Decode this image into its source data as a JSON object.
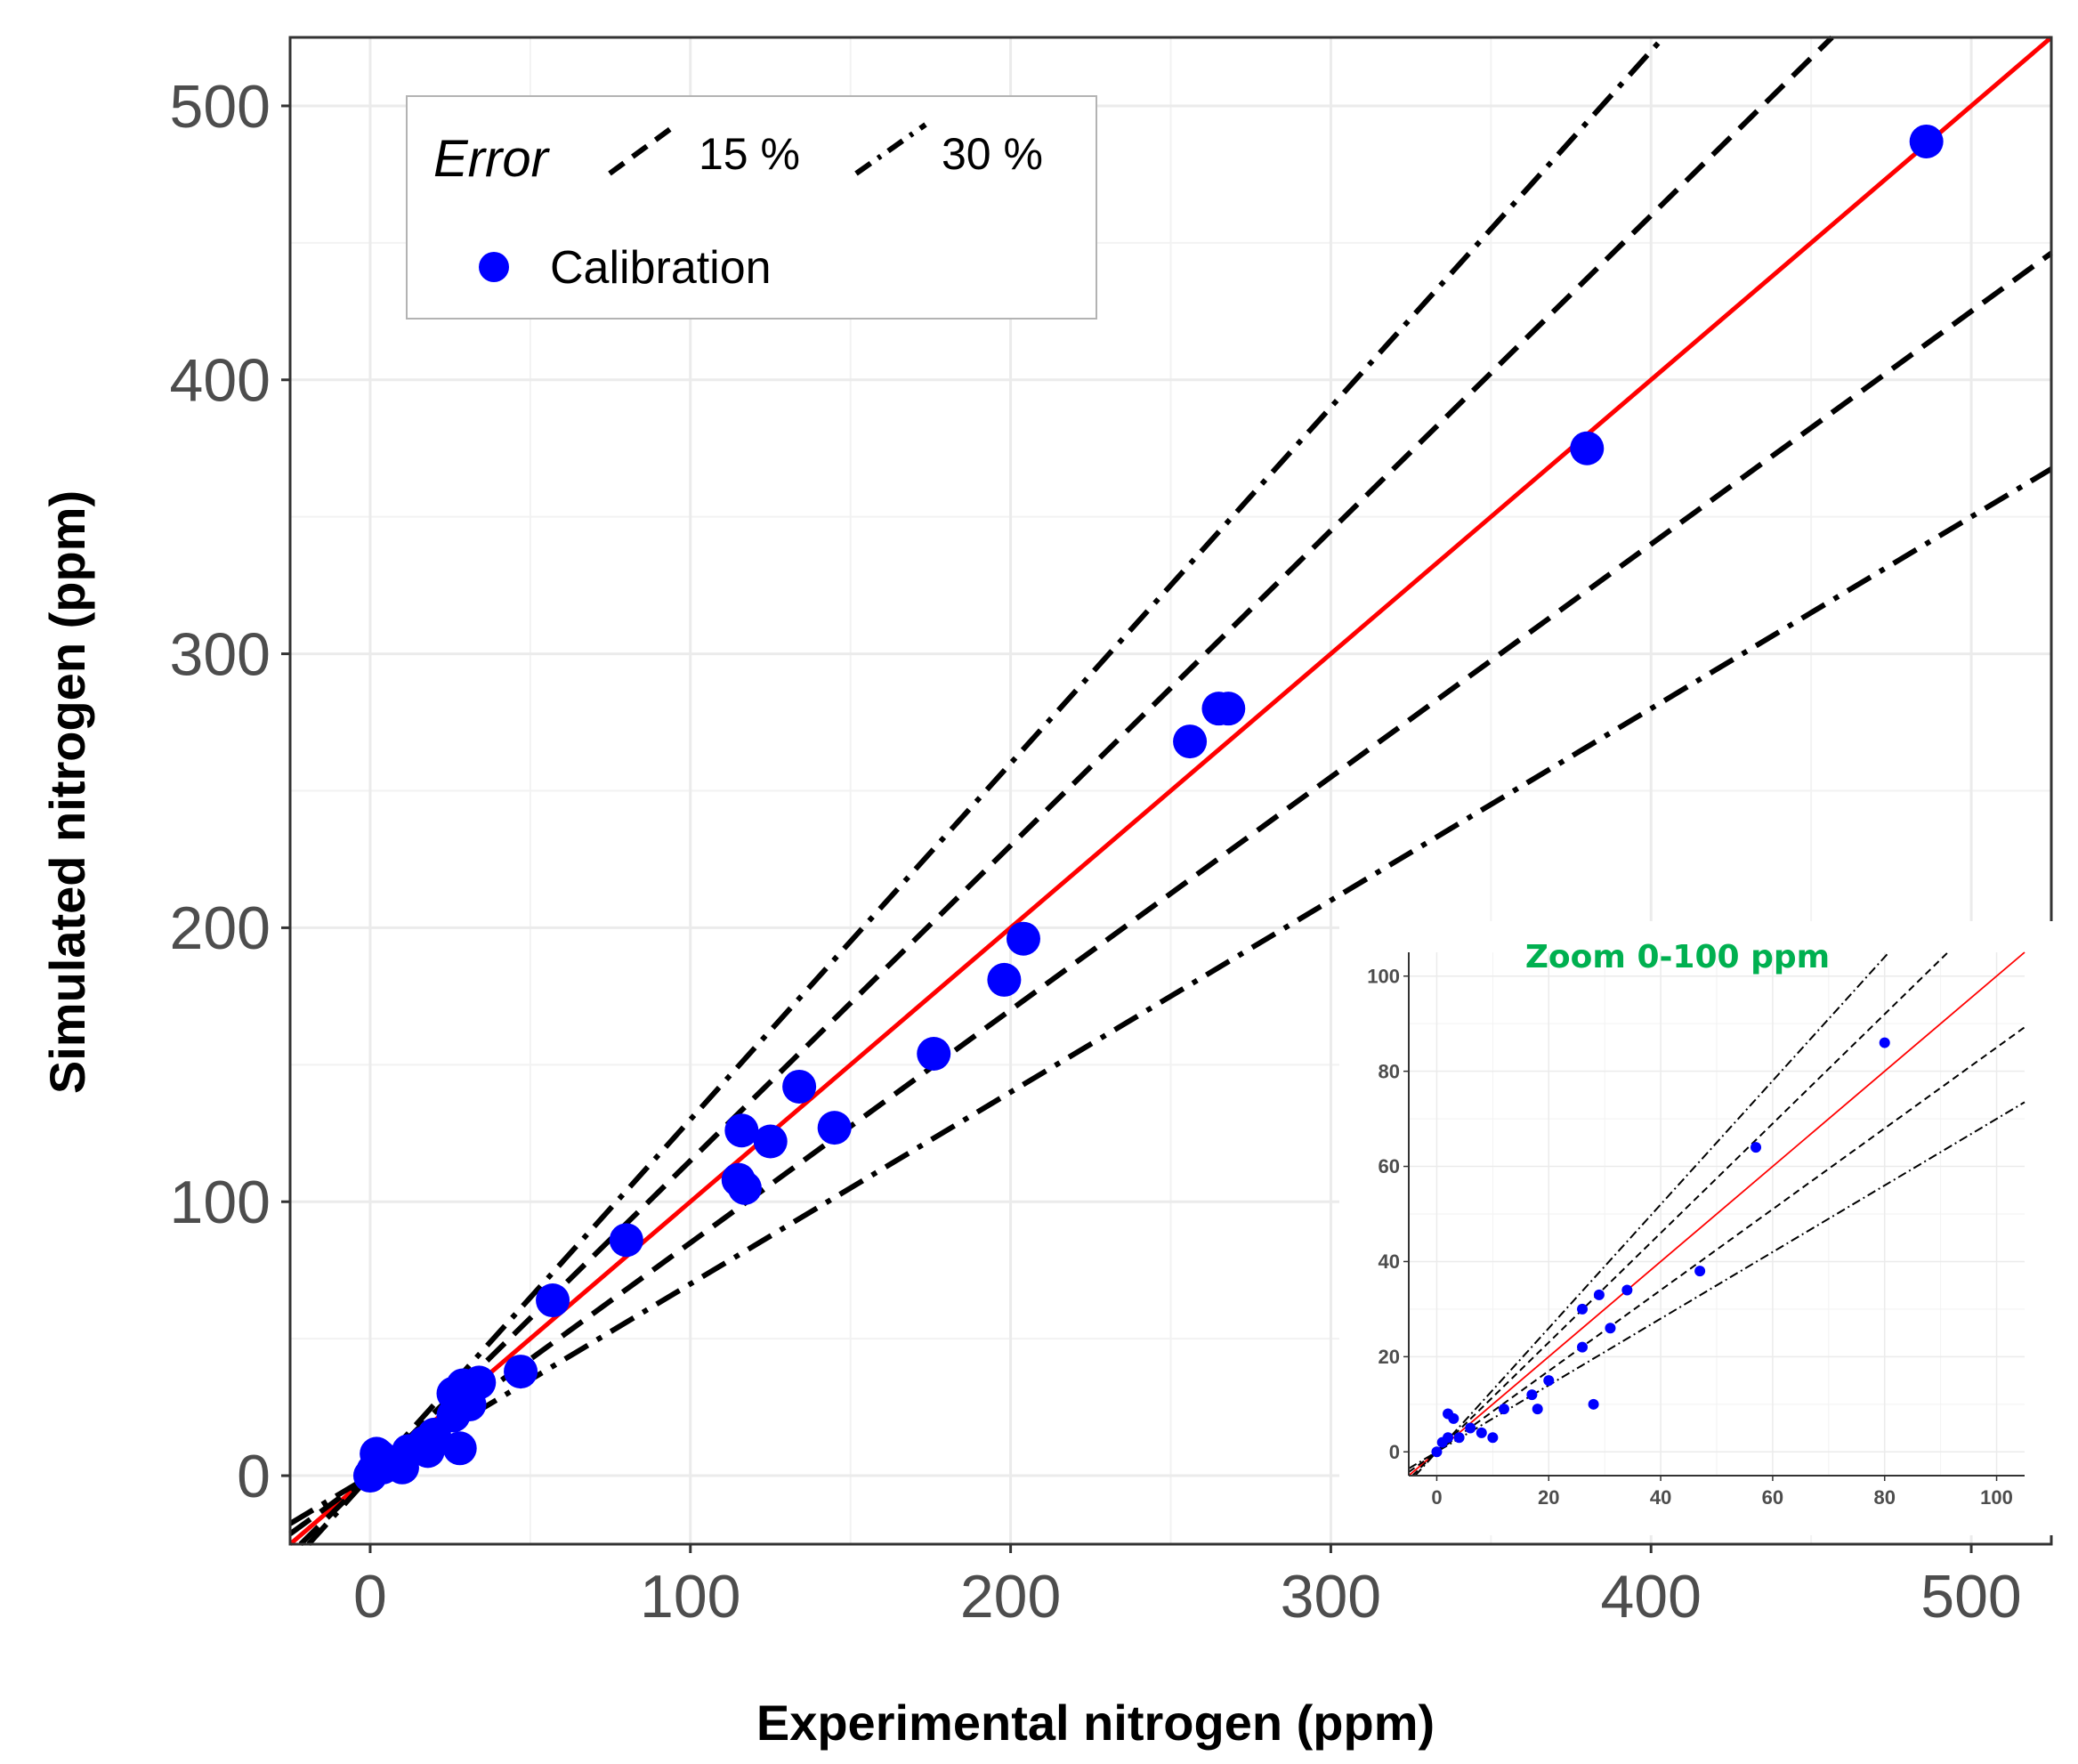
{
  "chart_data": [
    {
      "type": "scatter",
      "title": "",
      "xlabel": "Experimental nitrogen (ppm)",
      "ylabel": "Simulated nitrogen (ppm)",
      "xlim": [
        -25,
        525
      ],
      "ylim": [
        -25,
        525
      ],
      "xticks": [
        0,
        100,
        200,
        300,
        400,
        500
      ],
      "yticks": [
        0,
        100,
        200,
        300,
        400,
        500
      ],
      "grid": true,
      "legend": {
        "placement": "top-left",
        "title": "Error",
        "line_entries": [
          "15 %",
          "30 %"
        ],
        "point_entry": "Calibration"
      },
      "colors": {
        "points": "#0000ff",
        "identity_line": "#ff0000",
        "error_lines": "#000000",
        "grid": "#ebebeb"
      },
      "reference_lines": [
        {
          "name": "identity",
          "slope": 1.0,
          "style": "solid",
          "color": "#ff0000"
        },
        {
          "name": "+15 %",
          "slope": 1.15,
          "style": "dashed"
        },
        {
          "name": "-15 %",
          "slope": 0.85,
          "style": "dashed"
        },
        {
          "name": "+30 %",
          "slope": 1.3,
          "style": "dotdash"
        },
        {
          "name": "-30 %",
          "slope": 0.7,
          "style": "dotdash"
        }
      ],
      "series": [
        {
          "name": "Calibration",
          "points": [
            [
              0,
              0
            ],
            [
              1,
              2
            ],
            [
              2,
              3
            ],
            [
              2,
              8
            ],
            [
              3,
              7
            ],
            [
              4,
              3
            ],
            [
              6,
              5
            ],
            [
              8,
              4
            ],
            [
              10,
              3
            ],
            [
              12,
              9
            ],
            [
              17,
              12
            ],
            [
              18,
              9
            ],
            [
              20,
              15
            ],
            [
              26,
              30
            ],
            [
              26,
              22
            ],
            [
              28,
              10
            ],
            [
              29,
              33
            ],
            [
              31,
              26
            ],
            [
              34,
              34
            ],
            [
              47,
              38
            ],
            [
              57,
              64
            ],
            [
              80,
              86
            ],
            [
              115,
              108
            ],
            [
              116,
              126
            ],
            [
              117,
              105
            ],
            [
              125,
              122
            ],
            [
              134,
              142
            ],
            [
              145,
              127
            ],
            [
              176,
              154
            ],
            [
              198,
              181
            ],
            [
              204,
              196
            ],
            [
              256,
              268
            ],
            [
              265,
              280
            ],
            [
              268,
              280
            ],
            [
              380,
              375
            ],
            [
              486,
              487
            ]
          ]
        }
      ]
    },
    {
      "type": "scatter",
      "title": "Zoom 0-100 ppm",
      "title_color": "#00b050",
      "xlabel": "",
      "ylabel": "",
      "xlim": [
        -5,
        105
      ],
      "ylim": [
        -5,
        105
      ],
      "xticks": [
        0,
        20,
        40,
        60,
        80,
        100
      ],
      "yticks": [
        0,
        20,
        40,
        60,
        80,
        100
      ],
      "grid": true,
      "series": [
        {
          "name": "Calibration",
          "points": [
            [
              0,
              0
            ],
            [
              1,
              2
            ],
            [
              2,
              3
            ],
            [
              2,
              8
            ],
            [
              3,
              7
            ],
            [
              4,
              3
            ],
            [
              6,
              5
            ],
            [
              8,
              4
            ],
            [
              10,
              3
            ],
            [
              12,
              9
            ],
            [
              17,
              12
            ],
            [
              18,
              9
            ],
            [
              20,
              15
            ],
            [
              26,
              30
            ],
            [
              26,
              22
            ],
            [
              28,
              10
            ],
            [
              29,
              33
            ],
            [
              31,
              26
            ],
            [
              34,
              34
            ],
            [
              47,
              38
            ],
            [
              57,
              64
            ],
            [
              80,
              86
            ]
          ]
        }
      ]
    }
  ]
}
